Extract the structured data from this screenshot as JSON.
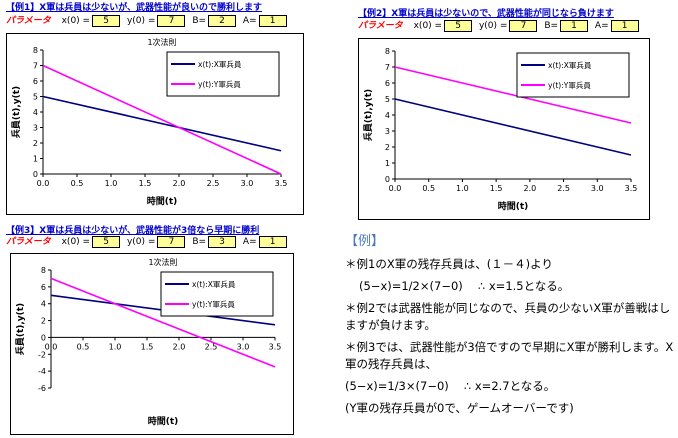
{
  "examples": [
    {
      "header": "【例1】X軍は兵員は少ないが、武器性能が良いので勝利します",
      "params_label": "パラメータ",
      "params": [
        {
          "key": "x(0) =",
          "value": "5"
        },
        {
          "key": "y(0) =",
          "value": "7"
        },
        {
          "key": "B=",
          "value": "2"
        },
        {
          "key": "A=",
          "value": "1"
        }
      ]
    },
    {
      "header": "【例2】X軍は兵員は少ないので、武器性能が同じなら負けます",
      "params_label": "パラメータ",
      "params": [
        {
          "key": "x(0) =",
          "value": "5"
        },
        {
          "key": "y(0) =",
          "value": "7"
        },
        {
          "key": "B=",
          "value": "1"
        },
        {
          "key": "A=",
          "value": "1"
        }
      ]
    },
    {
      "header": "【例3】X軍は兵員は少ないが、武器性能が3倍なら早期に勝利",
      "params_label": "パラメータ",
      "params": [
        {
          "key": "x(0) =",
          "value": "5"
        },
        {
          "key": "y(0) =",
          "value": "7"
        },
        {
          "key": "B=",
          "value": "3"
        },
        {
          "key": "A=",
          "value": "1"
        }
      ]
    }
  ],
  "colors": {
    "x_series": "#000080",
    "y_series": "#ff00ff"
  },
  "chart_data": [
    {
      "type": "line",
      "title": "1次法則",
      "xlabel": "時間(t)",
      "ylabel": "兵員(t),y(t)",
      "xlim": [
        0,
        3.5
      ],
      "ylim": [
        0,
        8
      ],
      "xticks": [
        "0.0",
        "0.5",
        "1.0",
        "1.5",
        "2.0",
        "2.5",
        "3.0",
        "3.5"
      ],
      "yticks": [
        "0",
        "1",
        "2",
        "3",
        "4",
        "5",
        "6",
        "7",
        "8"
      ],
      "legend_position": "top-right",
      "series": [
        {
          "name": "x(t):X軍兵員",
          "x": [
            0,
            3.5
          ],
          "y": [
            5,
            1.5
          ]
        },
        {
          "name": "y(t):Y軍兵員",
          "x": [
            0,
            3.5
          ],
          "y": [
            7,
            0
          ]
        }
      ]
    },
    {
      "type": "line",
      "title": "",
      "xlabel": "時間(t)",
      "ylabel": "兵員(t),y(t)",
      "xlim": [
        0,
        3.5
      ],
      "ylim": [
        0,
        8
      ],
      "xticks": [
        "0.0",
        "0.5",
        "1.0",
        "1.5",
        "2.0",
        "2.5",
        "3.0",
        "3.5"
      ],
      "yticks": [
        "0",
        "1",
        "2",
        "3",
        "4",
        "5",
        "6",
        "7",
        "8"
      ],
      "legend_position": "top-right",
      "series": [
        {
          "name": "x(t):X軍兵員",
          "x": [
            0,
            3.5
          ],
          "y": [
            5,
            1.5
          ]
        },
        {
          "name": "y(t):Y軍兵員",
          "x": [
            0,
            3.5
          ],
          "y": [
            7,
            3.5
          ]
        }
      ]
    },
    {
      "type": "line",
      "title": "1次法則",
      "xlabel": "時間(t)",
      "ylabel": "兵員(t),y(t)",
      "xlim": [
        0,
        3.5
      ],
      "ylim": [
        -6,
        8
      ],
      "xticks": [
        "0.0",
        "0.5",
        "1.0",
        "1.5",
        "2.0",
        "2.5",
        "3.0",
        "3.5"
      ],
      "yticks": [
        "-6",
        "-4",
        "-2",
        "0",
        "2",
        "4",
        "6",
        "8"
      ],
      "legend_position": "top-right",
      "series": [
        {
          "name": "x(t):X軍兵員",
          "x": [
            0,
            3.5
          ],
          "y": [
            5,
            1.5
          ]
        },
        {
          "name": "y(t):Y軍兵員",
          "x": [
            0,
            3.5
          ],
          "y": [
            7,
            -3.5
          ]
        }
      ]
    }
  ],
  "explanation": {
    "title": "【例】",
    "lines": [
      "＊例1のX軍の残存兵員は、(１－４)より",
      "(5−x)=1/2×(7−0)　 ∴ x=1.5となる。",
      "＊例2では武器性能が同じなので、兵員の少ないX軍が善戦はしますが負けます。",
      "＊例3では、武器性能が3倍ですので早期にX軍が勝利します。X軍の残存兵員は、",
      "(5−x)=1/3×(7−0)　 ∴ x=2.7となる。",
      "(Y軍の残存兵員が0で、ゲームオーバーです)"
    ]
  }
}
